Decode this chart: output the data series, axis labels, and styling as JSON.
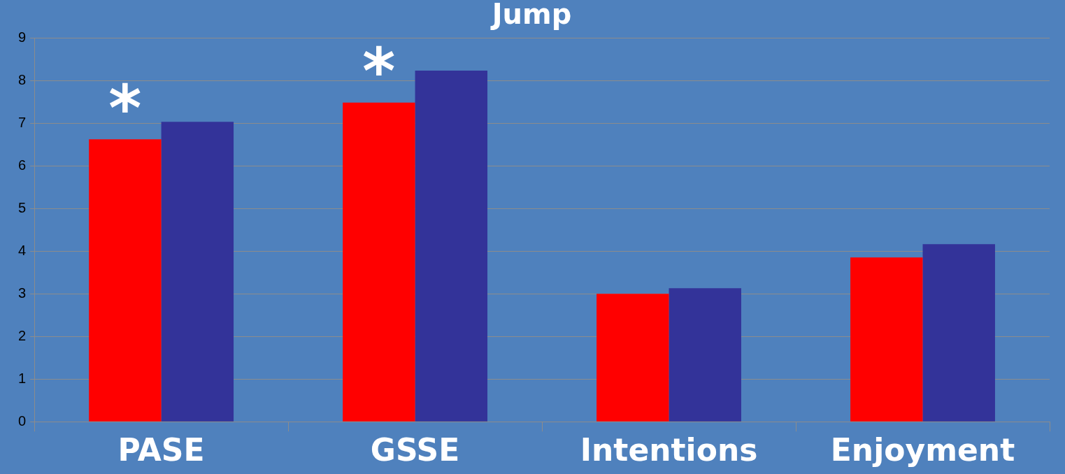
{
  "chart_data": {
    "type": "bar",
    "title": "Jump",
    "categories": [
      "PASE",
      "GSSE",
      "Intentions",
      "Enjoyment"
    ],
    "series": [
      {
        "color": "#ff0000",
        "values": [
          6.62,
          7.48,
          3.0,
          3.85
        ]
      },
      {
        "color": "#333399",
        "values": [
          7.03,
          8.23,
          3.13,
          4.16
        ]
      }
    ],
    "ylim": [
      0,
      9
    ],
    "yticks": [
      0,
      1,
      2,
      3,
      4,
      5,
      6,
      7,
      8,
      9
    ],
    "grid": "y",
    "legend": false,
    "annotations": [
      {
        "text": "*",
        "x": "PASE",
        "y": 6.62
      },
      {
        "text": "*",
        "x": "GSSE",
        "y": 7.48
      }
    ]
  }
}
